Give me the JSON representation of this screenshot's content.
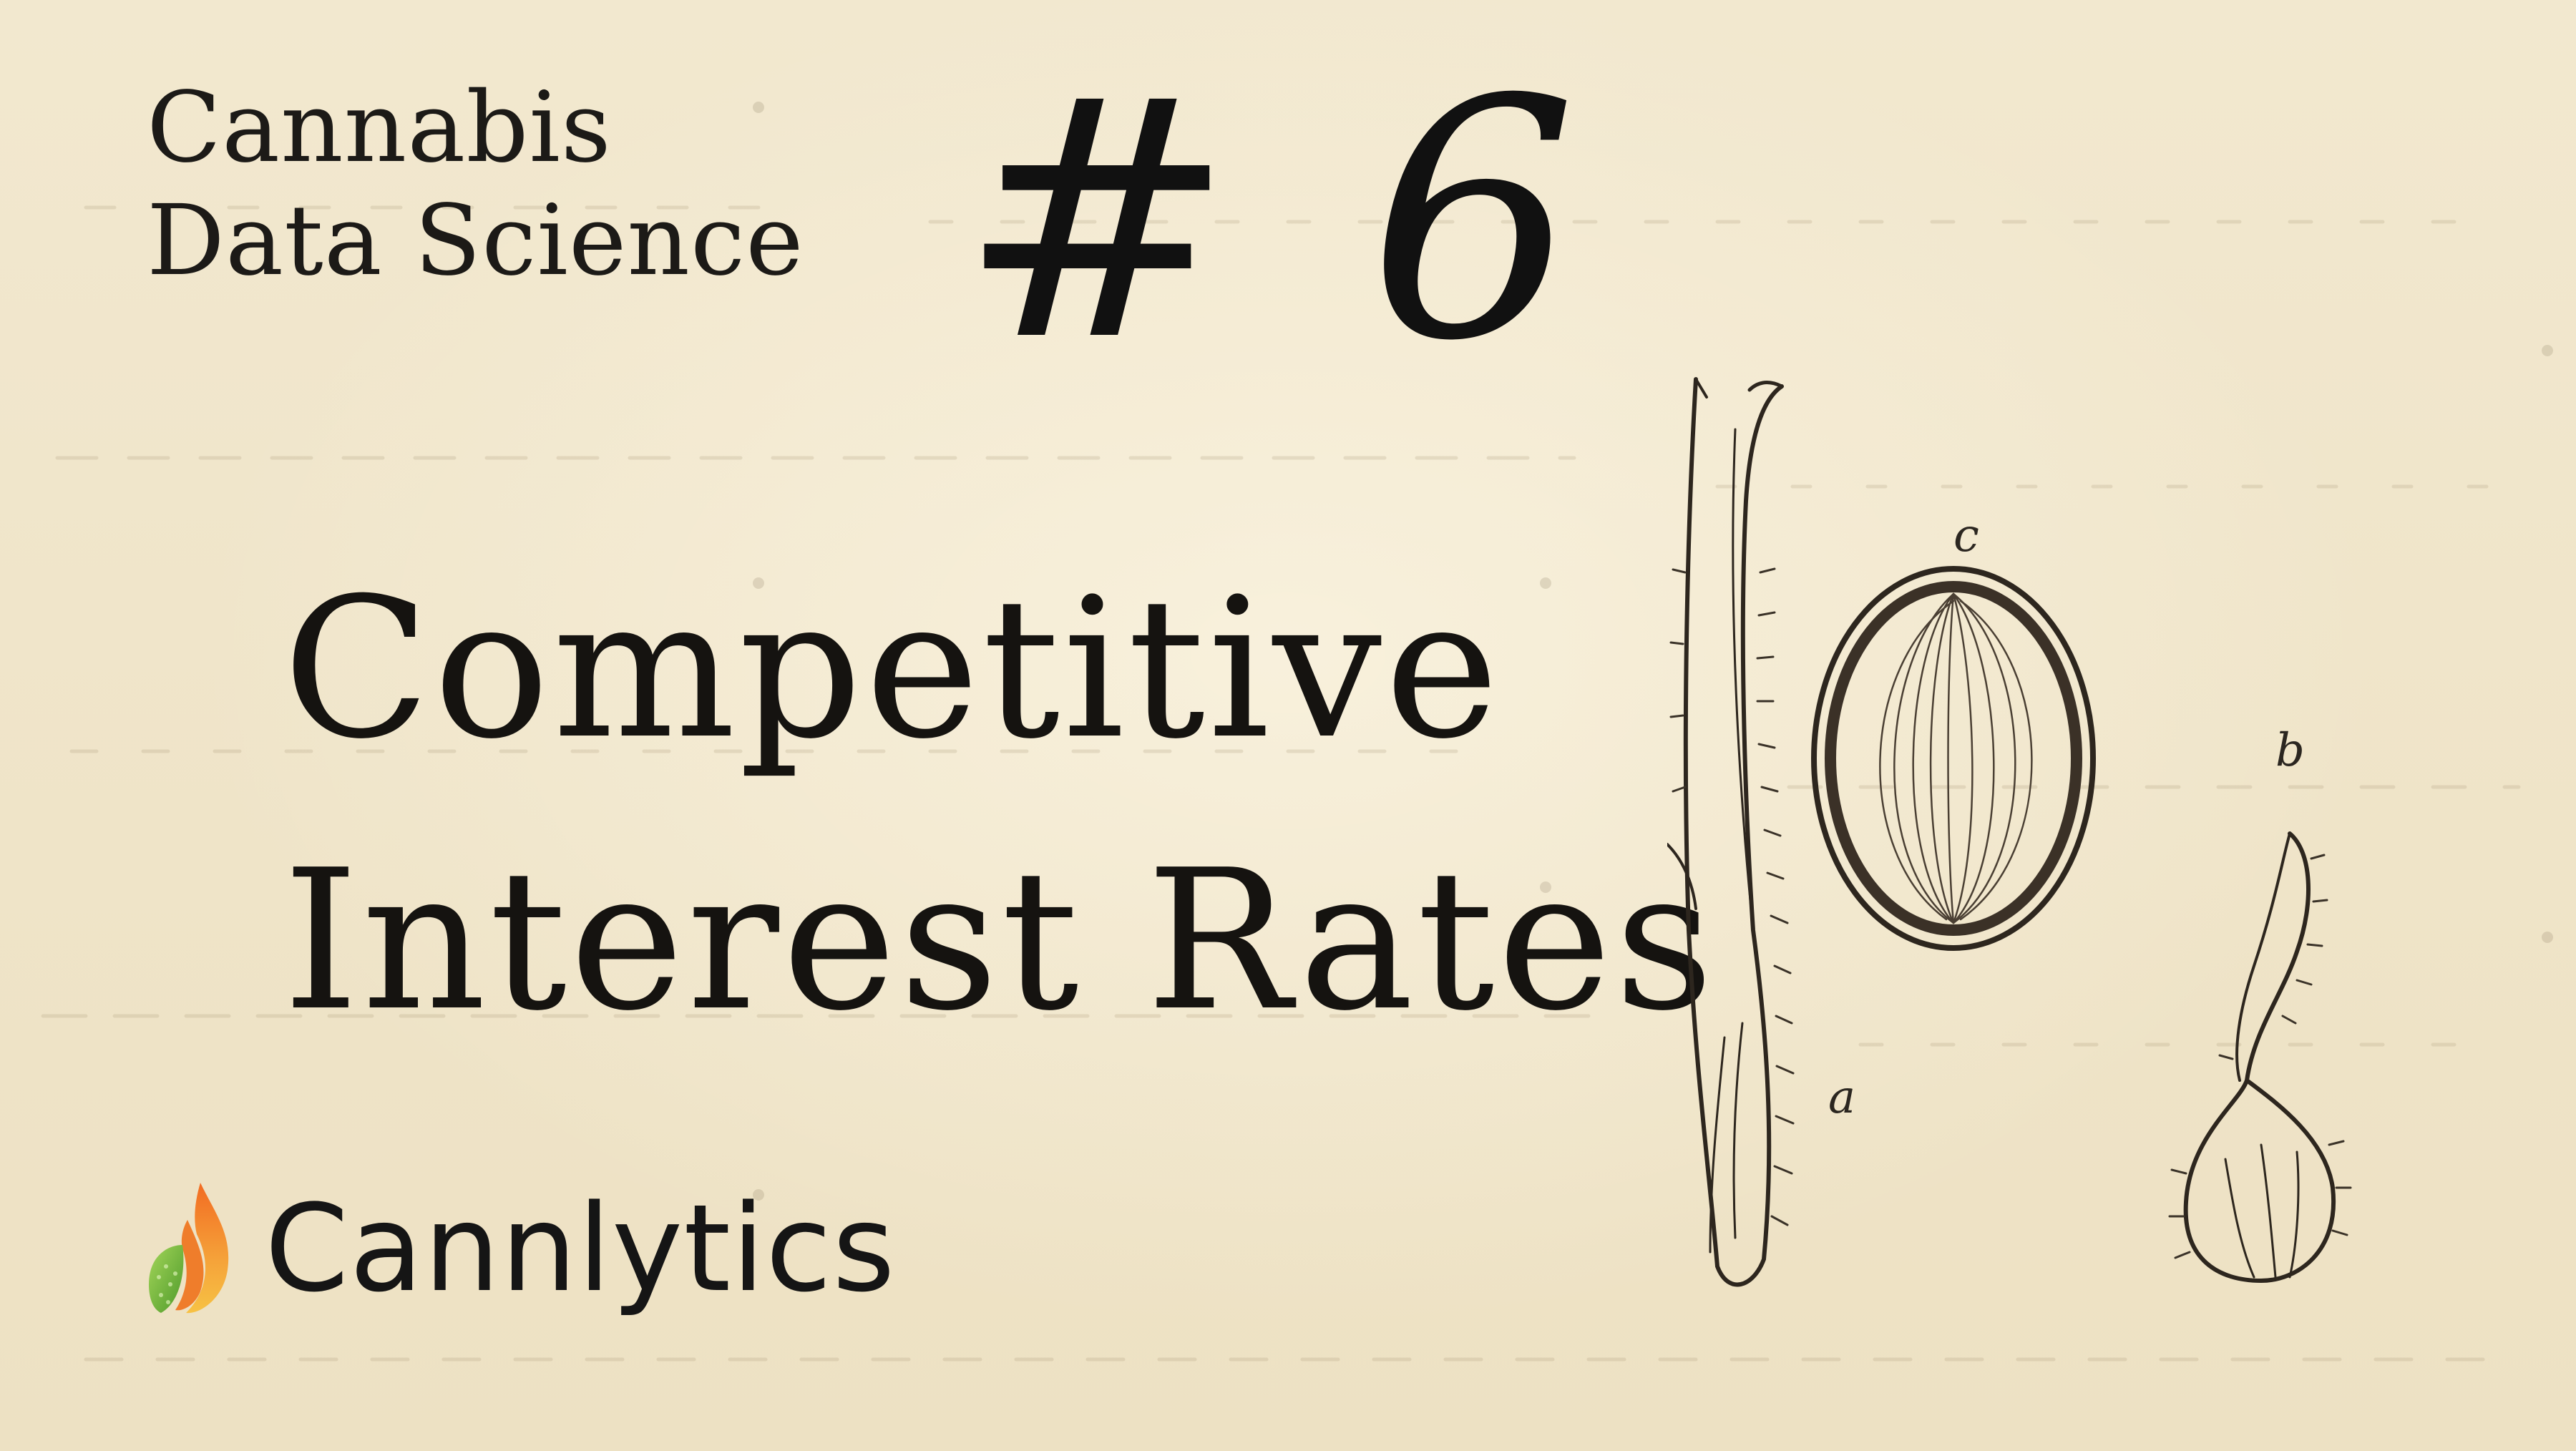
{
  "header": {
    "series_line1": "Cannabis",
    "series_line2": "Data Science",
    "issue_number": "# 6"
  },
  "headline": {
    "line1": "Competitive",
    "line2": "Interest Rates"
  },
  "brand": {
    "name": "Cannlytics",
    "icon": "flame-leaf-logo-icon",
    "colors": {
      "orange": "#ef7d2b",
      "yellow": "#f7c244",
      "green": "#7bbf3a"
    }
  },
  "illustration": {
    "icon": "seed-botanical-engraving",
    "labels": [
      "a",
      "b",
      "c"
    ]
  },
  "colors": {
    "background": "#efe4c9",
    "text": "#151310"
  }
}
